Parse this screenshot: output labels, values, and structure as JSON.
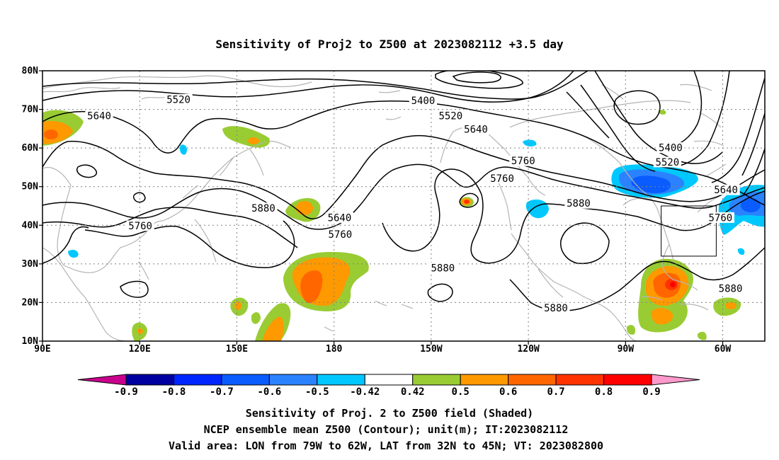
{
  "title": "Sensitivity of Proj2 to Z500 at 2023082112 +3.5 day",
  "map": {
    "lat_labels": [
      "80N",
      "70N",
      "60N",
      "50N",
      "40N",
      "30N",
      "20N",
      "10N"
    ],
    "lat_values": [
      80,
      70,
      60,
      50,
      40,
      30,
      20,
      10
    ],
    "lon_labels": [
      "90E",
      "120E",
      "150E",
      "180",
      "150W",
      "120W",
      "90W",
      "60W"
    ],
    "lon_values": [
      90,
      120,
      150,
      180,
      210,
      240,
      270,
      300
    ],
    "lon_range": [
      90,
      313
    ],
    "lat_range": [
      10,
      80
    ],
    "grid": true,
    "contour_color": "#000000",
    "coast_color": "#b4b4b4",
    "contour_labels": [
      {
        "text": "5520",
        "lon": 132,
        "lat": 72.5
      },
      {
        "text": "5640",
        "lon": 107.5,
        "lat": 68.3
      },
      {
        "text": "5400",
        "lon": 207.5,
        "lat": 72.2
      },
      {
        "text": "5520",
        "lon": 216,
        "lat": 68.3
      },
      {
        "text": "5640",
        "lon": 223.8,
        "lat": 64.8
      },
      {
        "text": "5760",
        "lon": 238.4,
        "lat": 56.6
      },
      {
        "text": "5760",
        "lon": 231.9,
        "lat": 52.1
      },
      {
        "text": "5400",
        "lon": 283.9,
        "lat": 60
      },
      {
        "text": "5520",
        "lon": 282.9,
        "lat": 56.3
      },
      {
        "text": "5640",
        "lon": 301,
        "lat": 49.1
      },
      {
        "text": "5880",
        "lon": 158.2,
        "lat": 44.4
      },
      {
        "text": "5760",
        "lon": 120.2,
        "lat": 39.8
      },
      {
        "text": "5640",
        "lon": 181.7,
        "lat": 41.9
      },
      {
        "text": "5760",
        "lon": 181.9,
        "lat": 37.6
      },
      {
        "text": "5880",
        "lon": 255.5,
        "lat": 45.6
      },
      {
        "text": "5760",
        "lon": 299.3,
        "lat": 41.9
      },
      {
        "text": "5880",
        "lon": 213.6,
        "lat": 28.9
      },
      {
        "text": "5880",
        "lon": 302.4,
        "lat": 23.6
      },
      {
        "text": "5880",
        "lon": 248.5,
        "lat": 18.5
      }
    ],
    "valid_box": {
      "lon": [
        281,
        298
      ],
      "lat": [
        32,
        45
      ]
    }
  },
  "colorbar": {
    "labels": [
      "-0.9",
      "-0.8",
      "-0.7",
      "-0.6",
      "-0.5",
      "-0.42",
      "0.42",
      "0.5",
      "0.6",
      "0.7",
      "0.8",
      "0.9"
    ],
    "colors": [
      "#0000a0",
      "#0026ff",
      "#0a5cff",
      "#2b82ff",
      "#00c8ff",
      "#ffffff",
      "#99cc33",
      "#ff9900",
      "#ff6600",
      "#ff3300",
      "#ff0000"
    ],
    "low_color": "#c8008c",
    "high_color": "#ff99cc"
  },
  "captions": {
    "line1": "Sensitivity of Proj. 2 to Z500 field (Shaded)",
    "line2": "NCEP ensemble mean Z500 (Contour); unit(m); IT:2023082112",
    "line3": "Valid area: LON from 79W to 62W, LAT from 32N to 45N; VT: 2023082800"
  }
}
